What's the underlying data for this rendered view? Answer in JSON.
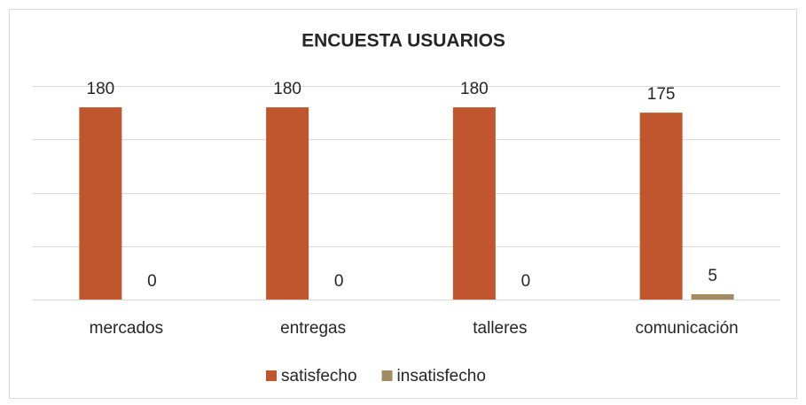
{
  "chart_data": {
    "type": "bar",
    "title": "ENCUESTA USUARIOS",
    "categories": [
      "mercados",
      "entregas",
      "talleres",
      "comunicación"
    ],
    "series": [
      {
        "name": "satisfecho",
        "color": "#c0562d",
        "values": [
          180,
          180,
          180,
          175
        ]
      },
      {
        "name": "insatisfecho",
        "color": "#a38b62",
        "values": [
          0,
          0,
          0,
          5
        ]
      }
    ],
    "ylim": [
      0,
      200
    ],
    "yticks": [
      0,
      50,
      100,
      150,
      200
    ],
    "grid": true,
    "legend": "bottom"
  }
}
